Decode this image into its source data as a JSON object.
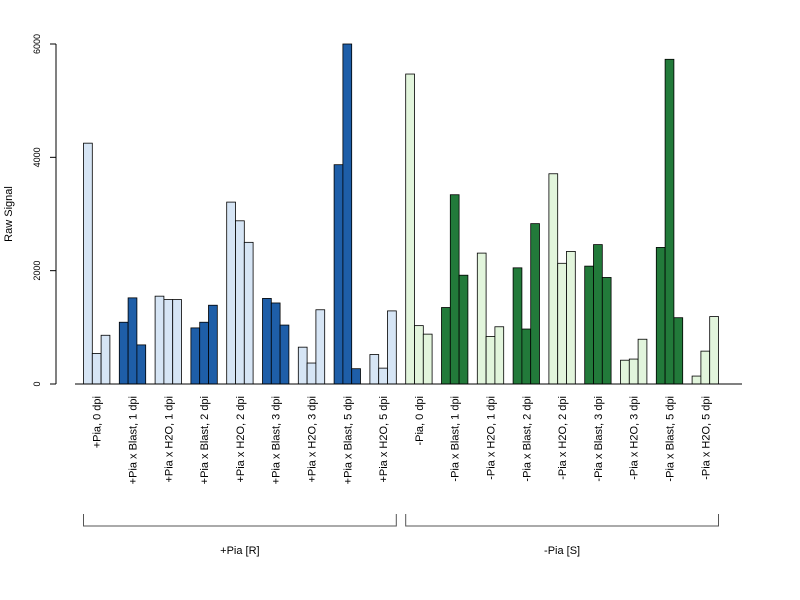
{
  "chart_data": {
    "type": "bar",
    "ylabel": "Raw Signal",
    "ylim": [
      0,
      6000
    ],
    "yticks": [
      0,
      2000,
      4000,
      6000
    ],
    "grid": false,
    "bars_per_group": 3,
    "categories": [
      "+Pia, 0 dpi",
      "+Pia x Blast, 1 dpi",
      "+Pia x H2O, 1 dpi",
      "+Pia x Blast, 2 dpi",
      "+Pia x H2O, 2 dpi",
      "+Pia x Blast, 3 dpi",
      "+Pia x H2O, 3 dpi",
      "+Pia x Blast, 5 dpi",
      "+Pia x H2O, 5 dpi",
      "-Pia, 0 dpi",
      "-Pia x Blast, 1 dpi",
      "-Pia x H2O, 1 dpi",
      "-Pia x Blast, 2 dpi",
      "-Pia x H2O, 2 dpi",
      "-Pia x Blast, 3 dpi",
      "-Pia x H2O, 3 dpi",
      "-Pia x Blast, 5 dpi",
      "-Pia x H2O, 5 dpi"
    ],
    "values": [
      [
        4250,
        540,
        860
      ],
      [
        1090,
        1520,
        690
      ],
      [
        1550,
        1490,
        1490
      ],
      [
        990,
        1090,
        1390
      ],
      [
        3210,
        2880,
        2500
      ],
      [
        1510,
        1430,
        1040
      ],
      [
        650,
        370,
        1310
      ],
      [
        3870,
        6000,
        270
      ],
      [
        520,
        280,
        1290
      ],
      [
        5470,
        1030,
        880
      ],
      [
        1350,
        3340,
        1920
      ],
      [
        2310,
        840,
        1010
      ],
      [
        2050,
        970,
        2830
      ],
      [
        3710,
        2130,
        2340
      ],
      [
        2080,
        2460,
        1880
      ],
      [
        420,
        440,
        790
      ],
      [
        2410,
        5730,
        1170
      ],
      [
        140,
        580,
        1190
      ]
    ],
    "bar_colors": [
      "#d6e5f5",
      "#1e5ea8",
      "#d6e5f5",
      "#1e5ea8",
      "#d6e5f5",
      "#1e5ea8",
      "#d6e5f5",
      "#1e5ea8",
      "#d6e5f5",
      "#e2f5dc",
      "#227a3a",
      "#e2f5dc",
      "#227a3a",
      "#e2f5dc",
      "#227a3a",
      "#e2f5dc",
      "#227a3a",
      "#e2f5dc"
    ],
    "groups": [
      {
        "label": "+Pia [R]",
        "first": 0,
        "last": 8
      },
      {
        "label": "-Pia [S]",
        "first": 9,
        "last": 17
      }
    ]
  }
}
